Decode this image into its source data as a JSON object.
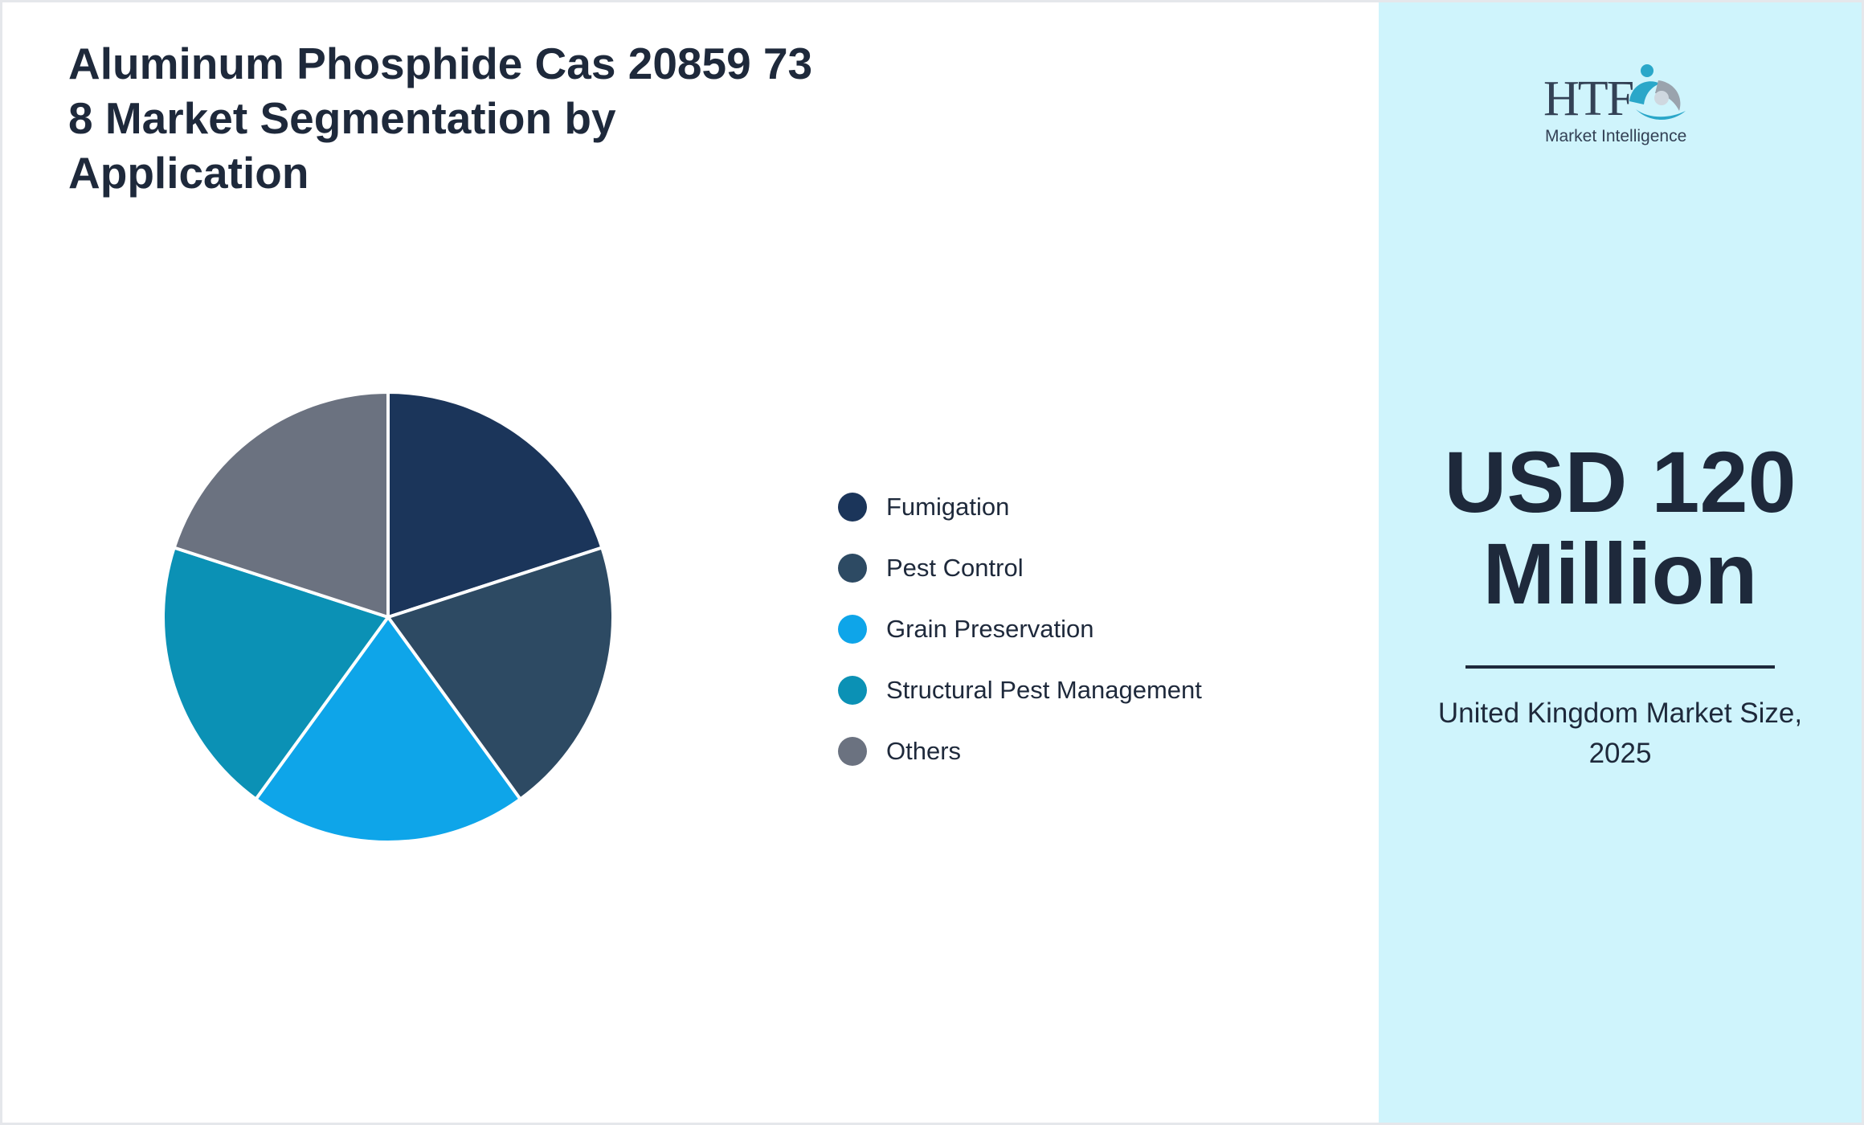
{
  "title": "Aluminum Phosphide Cas 20859 73 8 Market Segmentation by Application",
  "chart_data": {
    "type": "pie",
    "categories": [
      "Fumigation",
      "Pest Control",
      "Grain Preservation",
      "Structural Pest Management",
      "Others"
    ],
    "values": [
      20,
      20,
      20,
      20,
      20
    ],
    "colors": [
      "#1b355a",
      "#2d4a63",
      "#0ea5e9",
      "#0b91b5",
      "#6b7280"
    ],
    "legend_position": "right"
  },
  "side_panel": {
    "logo_text": "HTF",
    "logo_subtext": "Market Intelligence",
    "value_line1": "USD 120",
    "value_line2": "Million",
    "caption": "United Kingdom Market Size, 2025"
  }
}
